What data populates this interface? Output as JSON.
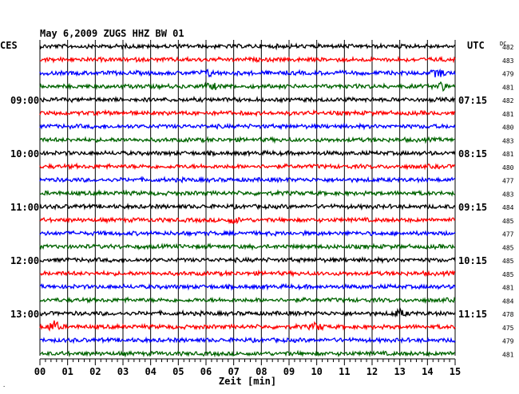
{
  "chart_data": {
    "type": "line",
    "title": "May 6,2009   ZUGS HHZ BW 01",
    "left_timezone": "CES",
    "right_timezone": "UTC",
    "dc_label": "DC",
    "xlabel": "Zeit [min]",
    "x_ticks": [
      "00",
      "01",
      "02",
      "03",
      "04",
      "05",
      "06",
      "07",
      "08",
      "09",
      "10",
      "11",
      "12",
      "13",
      "14",
      "15"
    ],
    "left_hour_labels": [
      {
        "trace": 4,
        "label": "09:00"
      },
      {
        "trace": 8,
        "label": "10:00"
      },
      {
        "trace": 12,
        "label": "11:00"
      },
      {
        "trace": 16,
        "label": "12:00"
      },
      {
        "trace": 20,
        "label": "13:00"
      }
    ],
    "right_hour_labels": [
      {
        "trace": 4,
        "label": "07:15"
      },
      {
        "trace": 8,
        "label": "08:15"
      },
      {
        "trace": 12,
        "label": "09:15"
      },
      {
        "trace": 16,
        "label": "10:15"
      },
      {
        "trace": 20,
        "label": "11:15"
      }
    ],
    "dc_values": [
      "482",
      "483",
      "479",
      "481",
      "482",
      "481",
      "480",
      "483",
      "481",
      "480",
      "477",
      "483",
      "484",
      "485",
      "477",
      "485",
      "485",
      "485",
      "481",
      "484",
      "478",
      "475",
      "479",
      "481"
    ],
    "trace_colors": [
      "#000000",
      "#ff0000",
      "#0000ff",
      "#006400"
    ],
    "events": [
      {
        "trace": 2,
        "minute": 6.1,
        "amp": 3
      },
      {
        "trace": 2,
        "minute": 14.4,
        "amp": 4
      },
      {
        "trace": 3,
        "minute": 14.5,
        "amp": 4
      },
      {
        "trace": 3,
        "minute": 6.2,
        "amp": 3
      },
      {
        "trace": 13,
        "minute": 7.0,
        "amp": 3
      },
      {
        "trace": 21,
        "minute": 0.5,
        "amp": 6
      },
      {
        "trace": 21,
        "minute": 10.0,
        "amp": 4
      },
      {
        "trace": 20,
        "minute": 13.0,
        "amp": 4
      }
    ]
  }
}
